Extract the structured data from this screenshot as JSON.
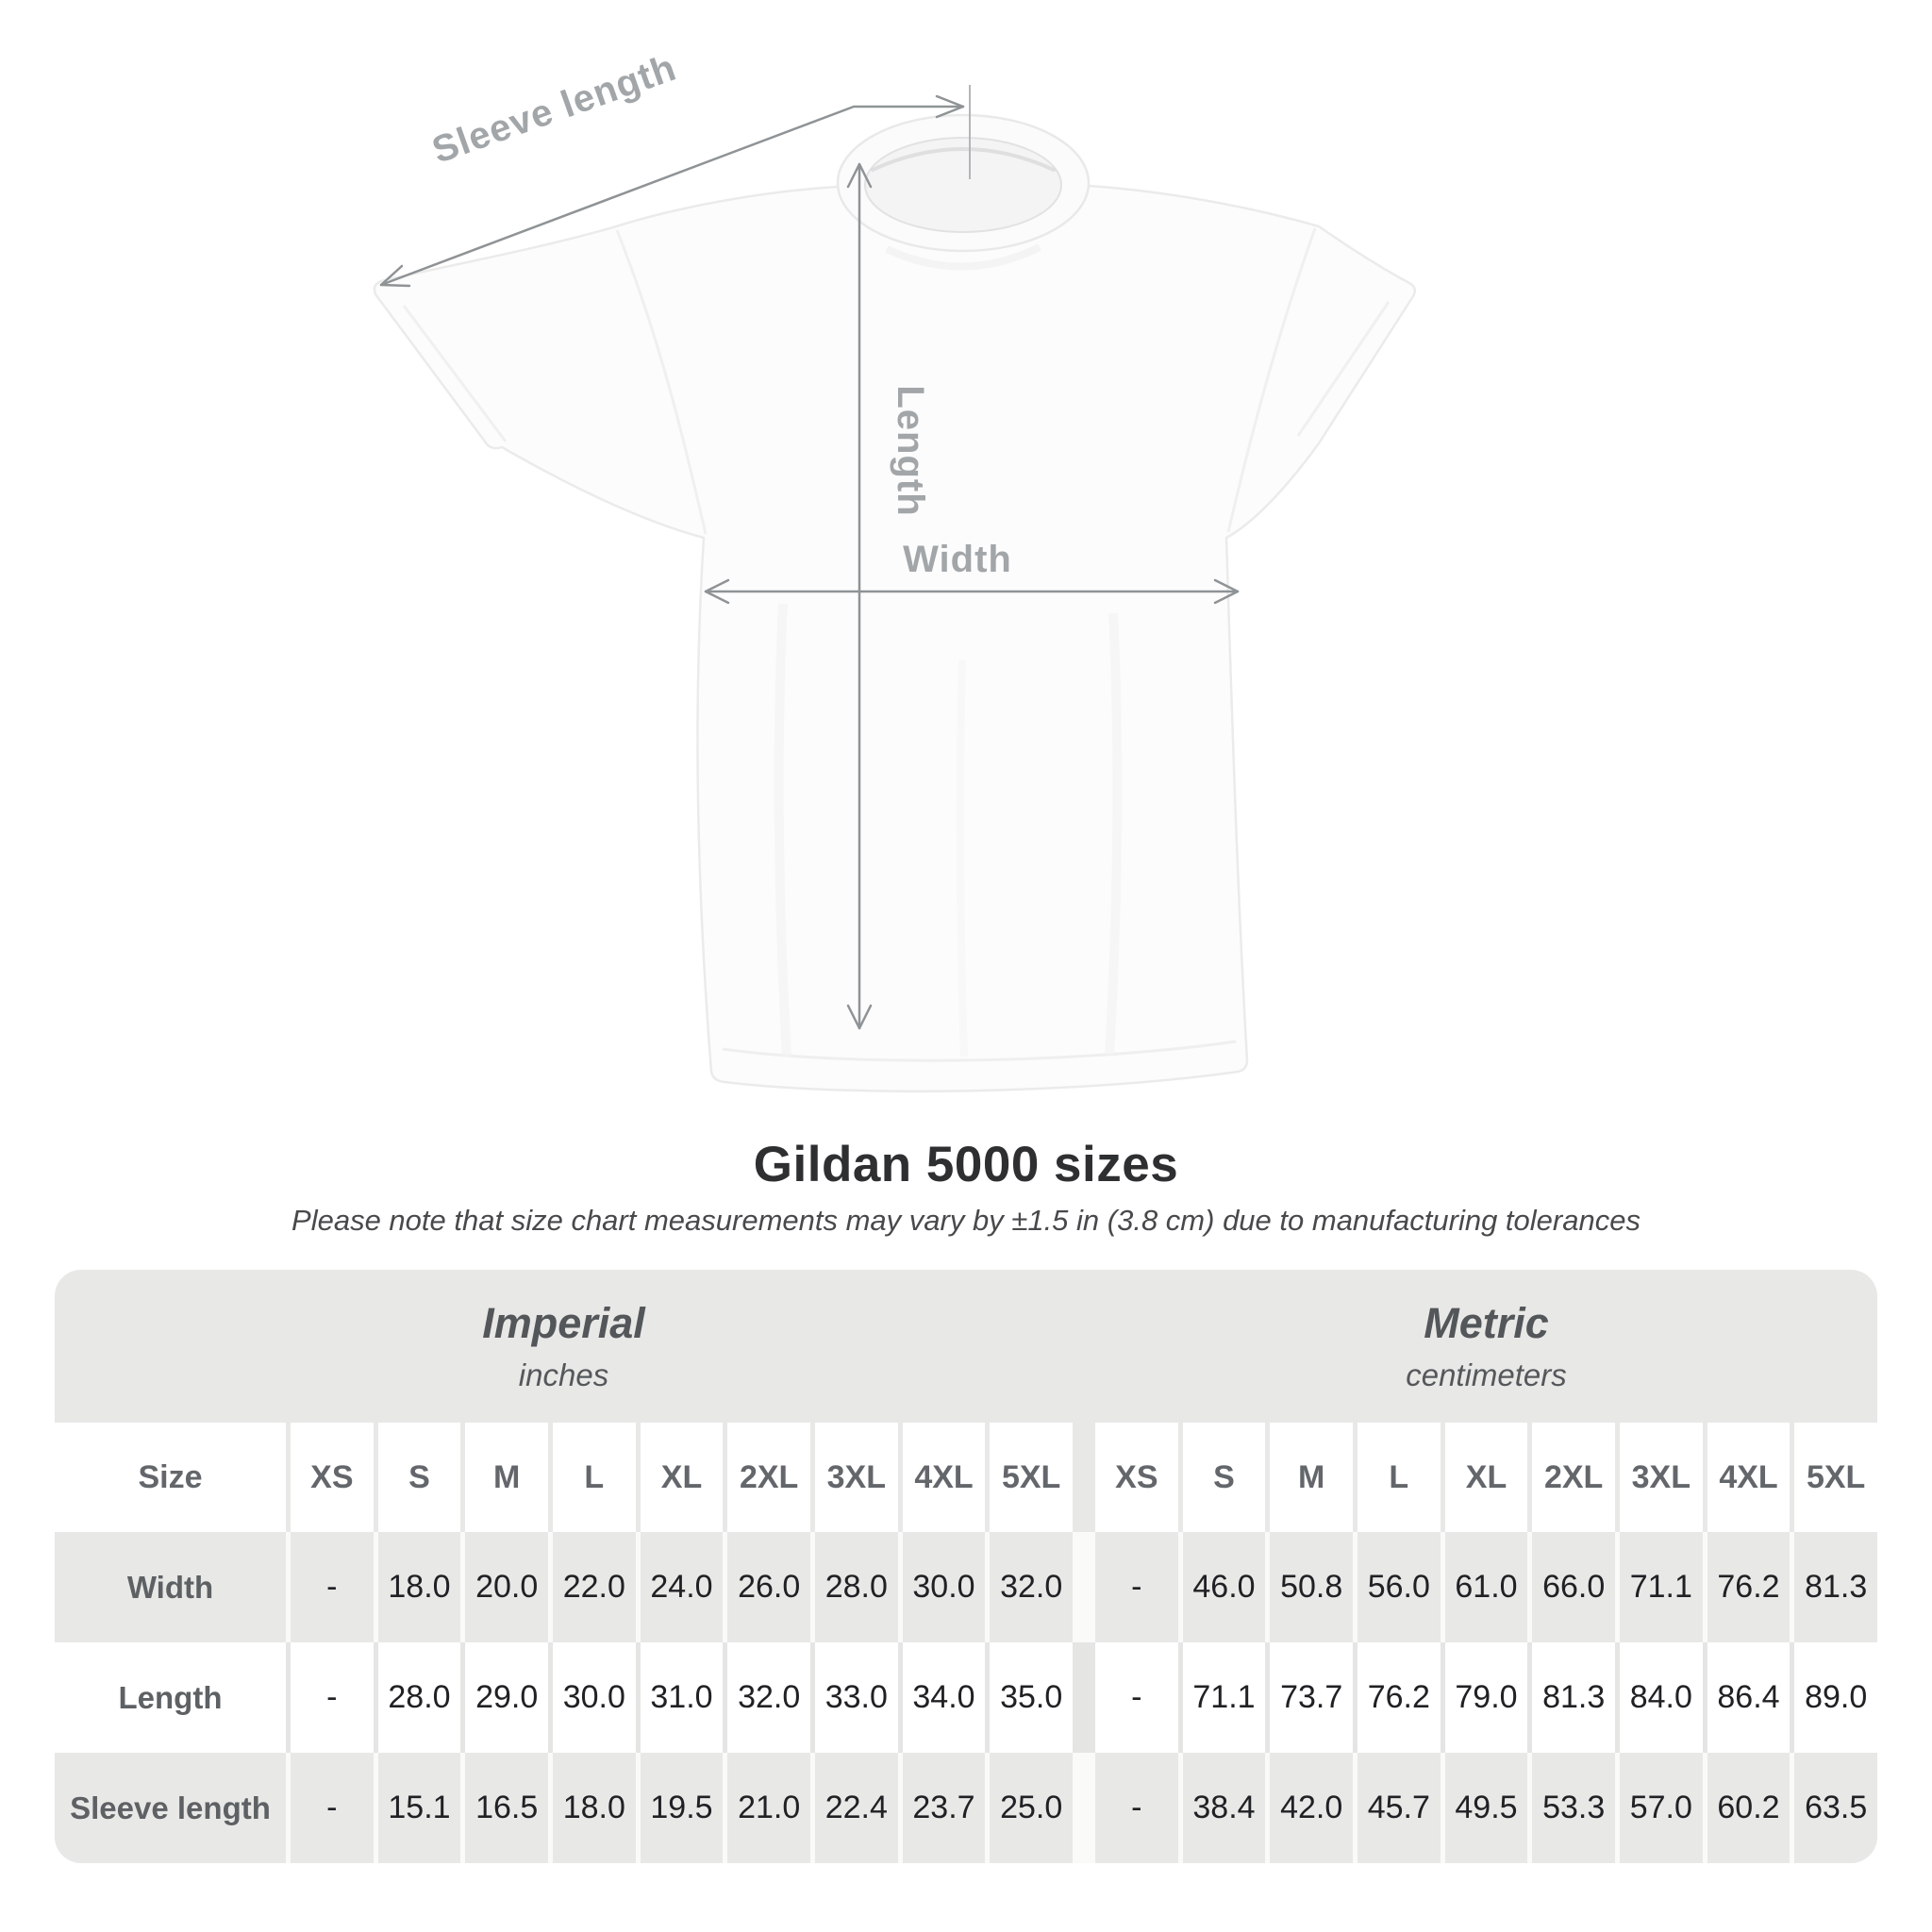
{
  "diagram": {
    "sleeve_length_label": "Sleeve length",
    "length_label": "Length",
    "width_label": "Width"
  },
  "title": "Gildan 5000 sizes",
  "subtitle": "Please note that size chart measurements may vary by ±1.5 in (3.8 cm) due to manufacturing tolerances",
  "chart_data": {
    "type": "table",
    "size_header": "Size",
    "row_labels": [
      "Width",
      "Length",
      "Sleeve length"
    ],
    "sections": [
      {
        "name": "Imperial",
        "unit": "inches",
        "sizes": [
          "XS",
          "S",
          "M",
          "L",
          "XL",
          "2XL",
          "3XL",
          "4XL",
          "5XL"
        ],
        "rows": [
          {
            "label": "Width",
            "values": [
              "-",
              "18.0",
              "20.0",
              "22.0",
              "24.0",
              "26.0",
              "28.0",
              "30.0",
              "32.0"
            ]
          },
          {
            "label": "Length",
            "values": [
              "-",
              "28.0",
              "29.0",
              "30.0",
              "31.0",
              "32.0",
              "33.0",
              "34.0",
              "35.0"
            ]
          },
          {
            "label": "Sleeve length",
            "values": [
              "-",
              "15.1",
              "16.5",
              "18.0",
              "19.5",
              "21.0",
              "22.4",
              "23.7",
              "25.0"
            ]
          }
        ]
      },
      {
        "name": "Metric",
        "unit": "centimeters",
        "sizes": [
          "XS",
          "S",
          "M",
          "L",
          "XL",
          "2XL",
          "3XL",
          "4XL",
          "5XL"
        ],
        "rows": [
          {
            "label": "Width",
            "values": [
              "-",
              "46.0",
              "50.8",
              "56.0",
              "61.0",
              "66.0",
              "71.1",
              "76.2",
              "81.3"
            ]
          },
          {
            "label": "Length",
            "values": [
              "-",
              "71.1",
              "73.7",
              "76.2",
              "79.0",
              "81.3",
              "84.0",
              "86.4",
              "89.0"
            ]
          },
          {
            "label": "Sleeve length",
            "values": [
              "-",
              "38.4",
              "42.0",
              "45.7",
              "49.5",
              "53.3",
              "57.0",
              "60.2",
              "63.5"
            ]
          }
        ]
      }
    ]
  },
  "colors": {
    "background": "#ffffff",
    "panel_gray": "#e8e8e7",
    "cell_white": "#ffffff",
    "dimension_line": "#8f9396",
    "dimension_label": "#a2a6a9",
    "title_text": "#2d2f31",
    "table_label_text": "#5e6164",
    "value_text": "#202124"
  }
}
